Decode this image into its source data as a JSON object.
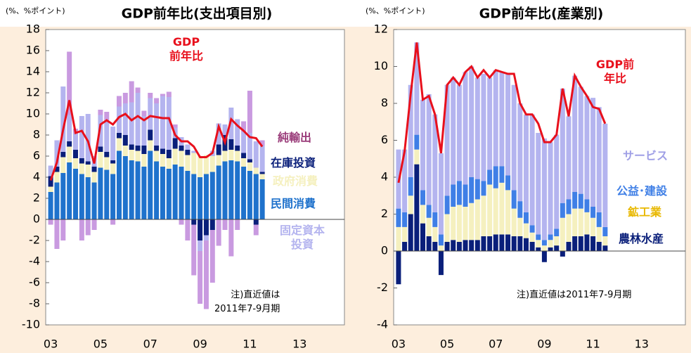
{
  "chart_data": [
    {
      "type": "bar",
      "stacked": true,
      "title": "GDP前年比(支出項目別)",
      "y_unit": "(%、%ポイント)",
      "note": "注)直近値は\n2011年7-9月期",
      "x": [
        2003,
        2003.25,
        2003.5,
        2003.75,
        2004,
        2004.25,
        2004.5,
        2004.75,
        2005,
        2005.25,
        2005.5,
        2005.75,
        2006,
        2006.25,
        2006.5,
        2006.75,
        2007,
        2007.25,
        2007.5,
        2007.75,
        2008,
        2008.25,
        2008.5,
        2008.75,
        2009,
        2009.25,
        2009.5,
        2009.75,
        2010,
        2010.25,
        2010.5,
        2010.75,
        2011,
        2011.25,
        2011.5
      ],
      "xlim": [
        2002.8,
        2014.8
      ],
      "xticks": [
        {
          "value": 2003,
          "label": "03"
        },
        {
          "value": 2005,
          "label": "05"
        },
        {
          "value": 2007,
          "label": "07"
        },
        {
          "value": 2009,
          "label": "09"
        },
        {
          "value": 2011,
          "label": "11"
        },
        {
          "value": 2013,
          "label": "13"
        }
      ],
      "ylim": [
        -10,
        18
      ],
      "yticks": [
        -10,
        -8,
        -6,
        -4,
        -2,
        0,
        2,
        4,
        6,
        8,
        10,
        12,
        14,
        16,
        18
      ],
      "series": [
        {
          "name": "民間消費",
          "color": "#1f72cc",
          "values": [
            2.6,
            3.5,
            4.4,
            5.4,
            4.8,
            4.3,
            4.0,
            3.5,
            4.9,
            4.7,
            4.3,
            6.5,
            6.0,
            5.6,
            5.5,
            5.0,
            6.5,
            5.5,
            5.0,
            4.8,
            5.2,
            5.0,
            4.6,
            4.3,
            4.0,
            4.3,
            4.5,
            5.1,
            5.5,
            5.6,
            5.5,
            5.0,
            4.6,
            4.3,
            3.8
          ]
        },
        {
          "name": "政府消費",
          "color": "#f5f0bf",
          "values": [
            0.5,
            1.0,
            1.5,
            1.5,
            1.0,
            1.0,
            1.2,
            1.0,
            1.5,
            1.2,
            1.0,
            1.2,
            1.0,
            1.0,
            1.0,
            1.2,
            1.0,
            1.0,
            1.2,
            1.0,
            1.5,
            1.5,
            1.5,
            2.0,
            2.0,
            1.8,
            1.5,
            1.0,
            1.0,
            1.0,
            1.0,
            0.8,
            0.8,
            0.6,
            0.5
          ]
        },
        {
          "name": "在庫投資",
          "color": "#0a1f7a",
          "values": [
            1.0,
            0.5,
            0.5,
            0.5,
            0.8,
            0.5,
            0.3,
            0.5,
            0.5,
            0.5,
            0.3,
            0.5,
            1.0,
            0.5,
            0.5,
            0.8,
            1.0,
            0.5,
            0.5,
            0.8,
            1.0,
            0.5,
            0.5,
            -0.5,
            -2.0,
            -1.5,
            -1.0,
            1.0,
            1.5,
            1.0,
            0.5,
            0.5,
            0.3,
            -0.5,
            0.2
          ]
        },
        {
          "name": "固定資本\n投資",
          "color": "#b4b4ef",
          "values": [
            1.0,
            2.5,
            6.2,
            2.5,
            1.5,
            4.0,
            4.5,
            1.0,
            3.0,
            2.8,
            3.2,
            2.5,
            3.0,
            4.0,
            5.0,
            2.8,
            3.0,
            4.0,
            5.0,
            5.0,
            1.0,
            0.8,
            0.5,
            0.2,
            -1.0,
            -0.5,
            0.5,
            2.0,
            1.0,
            3.0,
            2.5,
            2.0,
            2.5,
            2.5,
            2.5
          ]
        },
        {
          "name": "純輸出",
          "color": "#c99ae0",
          "label_color": "#9a3c7a",
          "values": [
            -0.5,
            -2.8,
            -2.0,
            6.0,
            0.5,
            -2.0,
            -1.5,
            -1.0,
            0.5,
            1.0,
            -0.5,
            1.0,
            1.0,
            2.0,
            0.5,
            0.5,
            0.5,
            0.5,
            0.2,
            0.5,
            0.3,
            -0.5,
            -2.0,
            -4.8,
            -5.0,
            -6.5,
            -5.0,
            -2.5,
            -1.0,
            -3.5,
            -1.0,
            1.0,
            4.0,
            -1.0,
            0.5
          ]
        },
        {
          "name": "GDP\n前年比",
          "type": "line",
          "color": "#e8101c",
          "values": [
            3.7,
            5.4,
            8.5,
            11.3,
            8.2,
            8.4,
            7.4,
            5.3,
            9.0,
            9.4,
            9.0,
            9.7,
            10.0,
            9.4,
            9.8,
            9.4,
            9.8,
            9.7,
            9.6,
            9.6,
            8.0,
            7.4,
            7.4,
            6.9,
            5.9,
            5.9,
            6.3,
            8.8,
            7.3,
            9.5,
            8.9,
            8.4,
            7.8,
            7.7,
            6.9
          ]
        }
      ]
    },
    {
      "type": "bar",
      "stacked": true,
      "title": "GDP前年比(産業別)",
      "y_unit": "(%、%ポイント)",
      "note": "注)直近値は2011年7-9月期",
      "x": [
        2003,
        2003.25,
        2003.5,
        2003.75,
        2004,
        2004.25,
        2004.5,
        2004.75,
        2005,
        2005.25,
        2005.5,
        2005.75,
        2006,
        2006.25,
        2006.5,
        2006.75,
        2007,
        2007.25,
        2007.5,
        2007.75,
        2008,
        2008.25,
        2008.5,
        2008.75,
        2009,
        2009.25,
        2009.5,
        2009.75,
        2010,
        2010.25,
        2010.5,
        2010.75,
        2011,
        2011.25,
        2011.5
      ],
      "xlim": [
        2002.8,
        2014.8
      ],
      "xticks": [
        {
          "value": 2003,
          "label": "03"
        },
        {
          "value": 2005,
          "label": "05"
        },
        {
          "value": 2007,
          "label": "07"
        },
        {
          "value": 2009,
          "label": "09"
        },
        {
          "value": 2011,
          "label": "11"
        },
        {
          "value": 2013,
          "label": "13"
        }
      ],
      "ylim": [
        -4,
        12
      ],
      "yticks": [
        -4,
        -2,
        0,
        2,
        4,
        6,
        8,
        10,
        12
      ],
      "series": [
        {
          "name": "農林水産",
          "color": "#0a1f7a",
          "values": [
            -1.8,
            0.5,
            2.0,
            4.7,
            1.5,
            0.8,
            0.5,
            -1.3,
            0.5,
            0.6,
            0.5,
            0.6,
            0.6,
            0.6,
            0.8,
            0.8,
            0.9,
            0.9,
            0.9,
            0.8,
            0.8,
            0.7,
            0.5,
            0.2,
            -0.6,
            0.2,
            0.3,
            -0.3,
            0.5,
            0.8,
            0.8,
            0.9,
            0.8,
            0.5,
            0.3
          ]
        },
        {
          "name": "鉱工業",
          "color": "#f5f0bf",
          "label_color": "#e8b800",
          "values": [
            1.3,
            0.8,
            1.0,
            0.8,
            1.0,
            1.0,
            0.8,
            0.3,
            1.5,
            1.8,
            2.0,
            1.8,
            2.0,
            2.2,
            2.2,
            2.8,
            2.5,
            2.8,
            2.4,
            1.5,
            1.0,
            0.8,
            0.5,
            0.4,
            0.3,
            0.4,
            0.5,
            1.8,
            1.5,
            1.5,
            1.5,
            1.2,
            1.0,
            0.8,
            0.5
          ]
        },
        {
          "name": "公益･建設",
          "color": "#3f7fe6",
          "values": [
            1.0,
            0.8,
            1.0,
            0.8,
            0.8,
            0.7,
            0.8,
            0.6,
            1.0,
            1.2,
            1.3,
            1.2,
            1.4,
            1.1,
            0.8,
            0.8,
            1.2,
            0.9,
            0.8,
            1.0,
            0.9,
            0.6,
            0.4,
            0.3,
            0.3,
            0.3,
            0.4,
            0.8,
            0.8,
            0.9,
            0.8,
            0.7,
            0.6,
            0.8,
            0.5
          ]
        },
        {
          "name": "サービス",
          "color": "#b4b4ef",
          "label_color": "#9f9fe6",
          "values": [
            3.2,
            3.4,
            5.0,
            5.0,
            4.9,
            6.0,
            5.3,
            4.4,
            6.0,
            5.8,
            5.2,
            6.1,
            6.0,
            5.5,
            5.8,
            5.0,
            5.2,
            5.1,
            5.5,
            5.7,
            5.3,
            5.3,
            6.0,
            5.5,
            5.5,
            5.0,
            5.1,
            6.2,
            4.5,
            6.3,
            5.8,
            5.6,
            5.9,
            5.7,
            5.6
          ]
        },
        {
          "name": "GDP前年比",
          "type": "line",
          "color": "#e8101c",
          "values": [
            3.7,
            5.4,
            8.5,
            11.3,
            8.2,
            8.4,
            7.4,
            5.3,
            9.0,
            9.4,
            9.0,
            9.7,
            10.0,
            9.4,
            9.8,
            9.4,
            9.8,
            9.7,
            9.6,
            9.6,
            8.0,
            7.4,
            7.4,
            6.9,
            5.9,
            5.9,
            6.3,
            8.8,
            7.3,
            9.5,
            8.9,
            8.4,
            7.8,
            7.7,
            6.9
          ]
        }
      ]
    }
  ]
}
